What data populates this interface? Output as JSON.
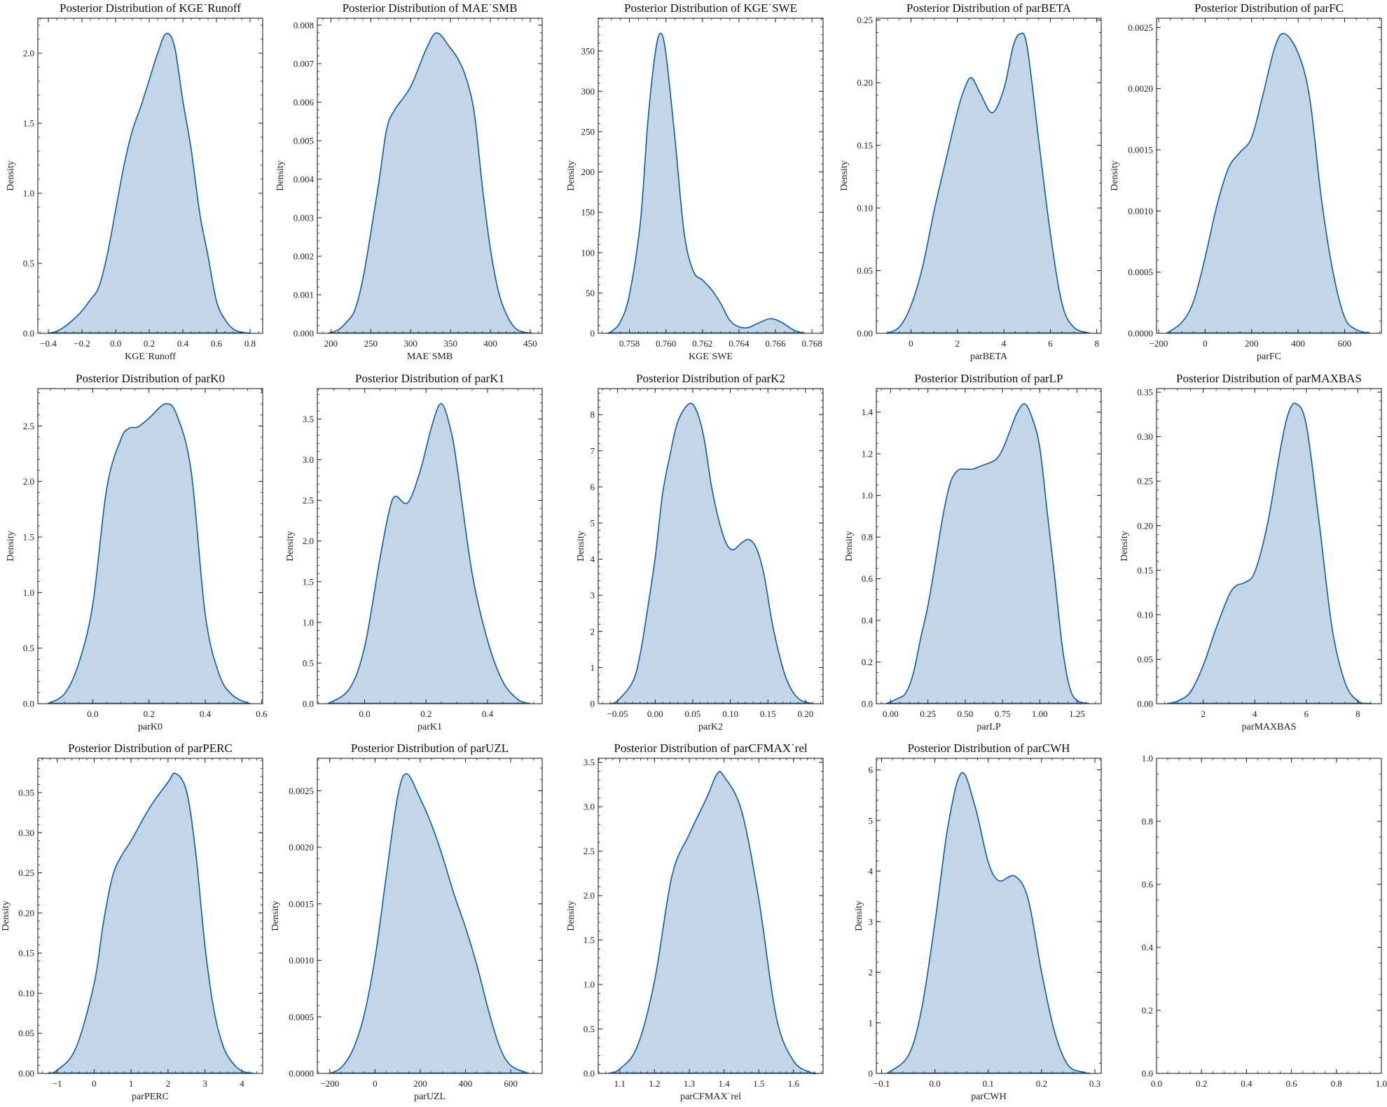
{
  "colors": {
    "line": "#0C5DA5",
    "fill": "#c3d6e7",
    "axes": "#222222"
  },
  "chart_data": [
    {
      "type": "area",
      "title": "Posterior Distribution of KGE˙Runoff",
      "xlabel": "KGE˙Runoff",
      "ylabel": "Density",
      "xlim": [
        -0.463,
        0.875
      ],
      "ylim": [
        0,
        2.25
      ],
      "xticks": [
        -0.4,
        -0.2,
        0,
        0.2,
        0.4,
        0.6,
        0.8
      ],
      "xtick_labels": [
        "−0.4",
        "−0.2",
        "0.0",
        "0.2",
        "0.4",
        "0.6",
        "0.8"
      ],
      "yticks": [
        0,
        0.5,
        1,
        1.5,
        2
      ],
      "ytick_labels": [
        "0.0",
        "0.5",
        "1.0",
        "1.5",
        "2.0"
      ],
      "x": [
        -0.4,
        -0.35,
        -0.3,
        -0.25,
        -0.2,
        -0.15,
        -0.1,
        -0.05,
        0,
        0.05,
        0.1,
        0.15,
        0.2,
        0.25,
        0.3,
        0.35,
        0.4,
        0.45,
        0.5,
        0.55,
        0.6,
        0.65,
        0.7,
        0.75,
        0.8
      ],
      "y": [
        0,
        0.015,
        0.05,
        0.1,
        0.16,
        0.24,
        0.33,
        0.56,
        0.88,
        1.2,
        1.45,
        1.62,
        1.81,
        2.0,
        2.14,
        2.05,
        1.66,
        1.31,
        0.86,
        0.55,
        0.23,
        0.1,
        0.03,
        0.008,
        0
      ]
    },
    {
      "type": "area",
      "title": "Posterior Distribution of MAE˙SMB",
      "xlabel": "MAE˙SMB",
      "ylabel": "Density",
      "xlim": [
        183,
        465
      ],
      "ylim": [
        0,
        0.00818
      ],
      "xticks": [
        200,
        250,
        300,
        350,
        400,
        450
      ],
      "xtick_labels": [
        "200",
        "250",
        "300",
        "350",
        "400",
        "450"
      ],
      "yticks": [
        0,
        0.001,
        0.002,
        0.003,
        0.004,
        0.005,
        0.006,
        0.007,
        0.008
      ],
      "ytick_labels": [
        "0.000",
        "0.001",
        "0.002",
        "0.003",
        "0.004",
        "0.005",
        "0.006",
        "0.007",
        "0.008"
      ],
      "x": [
        197,
        210,
        220,
        230,
        240,
        250,
        260,
        270,
        280,
        300,
        320,
        333,
        350,
        360,
        370,
        380,
        390,
        400,
        410,
        420,
        430,
        440,
        452
      ],
      "y": [
        0,
        0.0001,
        0.0003,
        0.0006,
        0.0014,
        0.0026,
        0.0039,
        0.0053,
        0.0058,
        0.0064,
        0.0074,
        0.0078,
        0.0074,
        0.0071,
        0.0066,
        0.0057,
        0.0038,
        0.0022,
        0.0011,
        0.0005,
        0.00016,
        4e-05,
        0
      ]
    },
    {
      "type": "area",
      "title": "Posterior Distribution of KGE˙SWE",
      "xlabel": "KGE˙SWE",
      "ylabel": "Density",
      "xlim": [
        0.75629,
        0.76861
      ],
      "ylim": [
        0,
        390.6
      ],
      "xticks": [
        0.758,
        0.76,
        0.762,
        0.764,
        0.766,
        0.768
      ],
      "xtick_labels": [
        "0.758",
        "0.760",
        "0.762",
        "0.764",
        "0.766",
        "0.768"
      ],
      "yticks": [
        0,
        50,
        100,
        150,
        200,
        250,
        300,
        350
      ],
      "ytick_labels": [
        "0",
        "50",
        "100",
        "150",
        "200",
        "250",
        "300",
        "350"
      ],
      "x": [
        0.7568,
        0.757,
        0.7575,
        0.758,
        0.7586,
        0.759,
        0.7594,
        0.7597,
        0.76,
        0.7605,
        0.761,
        0.7615,
        0.762,
        0.7625,
        0.763,
        0.7635,
        0.764,
        0.7645,
        0.765,
        0.7657,
        0.7663,
        0.767,
        0.7676
      ],
      "y": [
        0,
        2,
        14,
        48,
        138,
        260,
        345,
        372,
        346,
        240,
        124,
        77,
        66,
        54,
        37,
        16,
        8,
        7,
        12,
        18,
        14,
        4,
        0
      ]
    },
    {
      "type": "area",
      "title": "Posterior Distribution of parBETA",
      "xlabel": "parBETA",
      "ylabel": "Density",
      "xlim": [
        -1.49,
        8.19
      ],
      "ylim": [
        0,
        0.2515
      ],
      "xticks": [
        0,
        2,
        4,
        6,
        8
      ],
      "xtick_labels": [
        "0",
        "2",
        "4",
        "6",
        "8"
      ],
      "yticks": [
        0,
        0.05,
        0.1,
        0.15,
        0.2,
        0.25
      ],
      "ytick_labels": [
        "0.00",
        "0.05",
        "0.10",
        "0.15",
        "0.20",
        "0.25"
      ],
      "x": [
        -1.05,
        -0.5,
        0,
        0.5,
        1,
        1.5,
        2,
        2.3,
        2.6,
        3,
        3.5,
        4,
        4.4,
        4.7,
        5,
        5.5,
        6,
        6.5,
        7,
        7.7
      ],
      "y": [
        0,
        0.005,
        0.022,
        0.053,
        0.098,
        0.138,
        0.177,
        0.195,
        0.204,
        0.191,
        0.176,
        0.195,
        0.229,
        0.239,
        0.229,
        0.154,
        0.08,
        0.024,
        0.005,
        0
      ]
    },
    {
      "type": "area",
      "title": "Posterior Distribution of parFC",
      "xlabel": "parFC",
      "ylabel": "Density",
      "xlim": [
        -209,
        758
      ],
      "ylim": [
        0,
        0.002576
      ],
      "xticks": [
        -200,
        0,
        200,
        400,
        600
      ],
      "xtick_labels": [
        "−200",
        "0",
        "200",
        "400",
        "600"
      ],
      "yticks": [
        0,
        0.0005,
        0.001,
        0.0015,
        0.002,
        0.0025
      ],
      "ytick_labels": [
        "0.0000",
        "0.0005",
        "0.0010",
        "0.0015",
        "0.0020",
        "0.0025"
      ],
      "x": [
        -165,
        -100,
        -50,
        0,
        50,
        100,
        150,
        200,
        250,
        300,
        340,
        400,
        450,
        500,
        550,
        600,
        650,
        710
      ],
      "y": [
        0,
        9e-05,
        0.00026,
        0.00062,
        0.00104,
        0.00135,
        0.00148,
        0.0016,
        0.00196,
        0.00234,
        0.00245,
        0.00229,
        0.00192,
        0.0011,
        0.0005,
        0.00013,
        3e-05,
        0
      ]
    },
    {
      "type": "area",
      "title": "Posterior Distribution of parK0",
      "xlabel": "parK0",
      "ylabel": "Density",
      "xlim": [
        -0.195,
        0.604
      ],
      "ylim": [
        0,
        2.836
      ],
      "xticks": [
        0,
        0.2,
        0.4,
        0.6
      ],
      "xtick_labels": [
        "0.0",
        "0.2",
        "0.4",
        "0.6"
      ],
      "yticks": [
        0,
        0.5,
        1,
        1.5,
        2,
        2.5
      ],
      "ytick_labels": [
        "0.0",
        "0.5",
        "1.0",
        "1.5",
        "2.0",
        "2.5"
      ],
      "x": [
        -0.16,
        -0.1,
        -0.05,
        0,
        0.05,
        0.1,
        0.13,
        0.16,
        0.2,
        0.26,
        0.3,
        0.35,
        0.4,
        0.45,
        0.5,
        0.56
      ],
      "y": [
        0,
        0.09,
        0.36,
        0.89,
        1.94,
        2.38,
        2.48,
        2.49,
        2.57,
        2.7,
        2.59,
        2.09,
        0.8,
        0.26,
        0.07,
        0
      ]
    },
    {
      "type": "area",
      "title": "Posterior Distribution of parK1",
      "xlabel": "parK1",
      "ylabel": "Density",
      "xlim": [
        -0.154,
        0.578
      ],
      "ylim": [
        0,
        3.874
      ],
      "xticks": [
        0,
        0.2,
        0.4
      ],
      "xtick_labels": [
        "0.0",
        "0.2",
        "0.4"
      ],
      "yticks": [
        0,
        0.5,
        1,
        1.5,
        2,
        2.5,
        3,
        3.5
      ],
      "ytick_labels": [
        "0.0",
        "0.5",
        "1.0",
        "1.5",
        "2.0",
        "2.5",
        "3.0",
        "3.5"
      ],
      "x": [
        -0.12,
        -0.05,
        0,
        0.05,
        0.08,
        0.1,
        0.14,
        0.18,
        0.22,
        0.25,
        0.28,
        0.3,
        0.35,
        0.4,
        0.45,
        0.5,
        0.54
      ],
      "y": [
        0,
        0.18,
        0.7,
        1.79,
        2.37,
        2.55,
        2.47,
        2.85,
        3.43,
        3.69,
        3.37,
        2.94,
        1.6,
        0.78,
        0.27,
        0.05,
        0
      ]
    },
    {
      "type": "area",
      "title": "Posterior Distribution of parK2",
      "xlabel": "parK2",
      "ylabel": "Density",
      "xlim": [
        -0.0757,
        0.2234
      ],
      "ylim": [
        0,
        8.72
      ],
      "xticks": [
        -0.05,
        0,
        0.05,
        0.1,
        0.15,
        0.2
      ],
      "xtick_labels": [
        "−0.05",
        "0.00",
        "0.05",
        "0.10",
        "0.15",
        "0.20"
      ],
      "yticks": [
        0,
        1,
        2,
        3,
        4,
        5,
        6,
        7,
        8
      ],
      "ytick_labels": [
        "0",
        "1",
        "2",
        "3",
        "4",
        "5",
        "6",
        "7",
        "8"
      ],
      "x": [
        -0.06,
        -0.05,
        -0.03,
        -0.02,
        -0.01,
        0,
        0.01,
        0.02,
        0.03,
        0.045,
        0.055,
        0.065,
        0.075,
        0.085,
        0.095,
        0.104,
        0.115,
        0.125,
        0.135,
        0.145,
        0.155,
        0.165,
        0.175,
        0.185,
        0.195,
        0.21
      ],
      "y": [
        0,
        0.08,
        0.6,
        1.36,
        2.63,
        4.03,
        5.82,
        6.9,
        7.8,
        8.3,
        8.11,
        7.35,
        6.01,
        5.05,
        4.42,
        4.26,
        4.45,
        4.54,
        4.29,
        3.55,
        2.31,
        1.36,
        0.66,
        0.27,
        0.08,
        0
      ]
    },
    {
      "type": "area",
      "title": "Posterior Distribution of parLP",
      "xlabel": "parLP",
      "ylabel": "Density",
      "xlim": [
        -0.096,
        1.412
      ],
      "ylim": [
        0,
        1.513
      ],
      "xticks": [
        0,
        0.25,
        0.5,
        0.75,
        1,
        1.25
      ],
      "xtick_labels": [
        "0.00",
        "0.25",
        "0.50",
        "0.75",
        "1.00",
        "1.25"
      ],
      "yticks": [
        0,
        0.2,
        0.4,
        0.6,
        0.8,
        1,
        1.2,
        1.4
      ],
      "ytick_labels": [
        "0.0",
        "0.2",
        "0.4",
        "0.6",
        "0.8",
        "1.0",
        "1.2",
        "1.4"
      ],
      "x": [
        -0.03,
        0.05,
        0.1,
        0.15,
        0.2,
        0.25,
        0.3,
        0.35,
        0.4,
        0.45,
        0.5,
        0.55,
        0.6,
        0.7,
        0.75,
        0.8,
        0.85,
        0.9,
        0.95,
        1.0,
        1.05,
        1.1,
        1.15,
        1.2,
        1.25,
        1.33
      ],
      "y": [
        0,
        0.026,
        0.05,
        0.14,
        0.31,
        0.47,
        0.68,
        0.9,
        1.06,
        1.12,
        1.126,
        1.126,
        1.14,
        1.17,
        1.22,
        1.31,
        1.4,
        1.44,
        1.37,
        1.23,
        0.92,
        0.61,
        0.28,
        0.08,
        0.015,
        0
      ]
    },
    {
      "type": "area",
      "title": "Posterior Distribution of parMAXBAS",
      "xlabel": "parMAXBAS",
      "ylabel": "Density",
      "xlim": [
        0.186,
        8.914
      ],
      "ylim": [
        0,
        0.354
      ],
      "xticks": [
        2,
        4,
        6,
        8
      ],
      "xtick_labels": [
        "2",
        "4",
        "6",
        "8"
      ],
      "yticks": [
        0,
        0.05,
        0.1,
        0.15,
        0.2,
        0.25,
        0.3,
        0.35
      ],
      "ytick_labels": [
        "0.00",
        "0.05",
        "0.10",
        "0.15",
        "0.20",
        "0.25",
        "0.30",
        "0.35"
      ],
      "x": [
        0.6,
        1,
        1.5,
        2,
        2.5,
        3,
        3.3,
        3.6,
        4,
        4.5,
        5,
        5.3,
        5.6,
        6,
        6.5,
        7,
        7.5,
        8,
        8.5
      ],
      "y": [
        0,
        0.003,
        0.013,
        0.043,
        0.085,
        0.122,
        0.133,
        0.136,
        0.148,
        0.203,
        0.287,
        0.326,
        0.337,
        0.313,
        0.203,
        0.085,
        0.024,
        0.003,
        0
      ]
    },
    {
      "type": "area",
      "title": "Posterior Distribution of parPERC",
      "xlabel": "parPERC",
      "ylabel": "Density",
      "xlim": [
        -1.525,
        4.563
      ],
      "ylim": [
        0,
        0.3928
      ],
      "xticks": [
        -1,
        0,
        1,
        2,
        3,
        4
      ],
      "xtick_labels": [
        "−1",
        "0",
        "1",
        "2",
        "3",
        "4"
      ],
      "yticks": [
        0,
        0.05,
        0.1,
        0.15,
        0.2,
        0.25,
        0.3,
        0.35
      ],
      "ytick_labels": [
        "0.00",
        "0.05",
        "0.10",
        "0.15",
        "0.20",
        "0.25",
        "0.30",
        "0.35"
      ],
      "x": [
        -1.25,
        -1,
        -0.5,
        0,
        0.25,
        0.5,
        0.75,
        1,
        1.5,
        2,
        2.2,
        2.5,
        2.75,
        3,
        3.25,
        3.5,
        3.75,
        4,
        4.3
      ],
      "y": [
        0,
        0.004,
        0.031,
        0.112,
        0.188,
        0.246,
        0.272,
        0.29,
        0.331,
        0.363,
        0.374,
        0.352,
        0.275,
        0.159,
        0.077,
        0.033,
        0.013,
        0.003,
        0
      ]
    },
    {
      "type": "area",
      "title": "Posterior Distribution of parUZL",
      "xlabel": "parUZL",
      "ylabel": "Density",
      "xlim": [
        -255,
        739
      ],
      "ylim": [
        0,
        0.002787
      ],
      "xticks": [
        -200,
        0,
        200,
        400,
        600
      ],
      "xtick_labels": [
        "−200",
        "0",
        "200",
        "400",
        "600"
      ],
      "yticks": [
        0,
        0.0005,
        0.001,
        0.0015,
        0.002,
        0.0025
      ],
      "ytick_labels": [
        "0.0000",
        "0.0005",
        "0.0010",
        "0.0015",
        "0.0020",
        "0.0025"
      ],
      "x": [
        -200,
        -150,
        -100,
        -50,
        0,
        50,
        100,
        140,
        200,
        250,
        300,
        350,
        400,
        450,
        500,
        550,
        600,
        680
      ],
      "y": [
        0,
        5e-05,
        0.0002,
        0.0005,
        0.00102,
        0.00175,
        0.00245,
        0.00265,
        0.00243,
        0.0022,
        0.00191,
        0.00158,
        0.00129,
        0.00096,
        0.00057,
        0.00024,
        7e-05,
        0
      ]
    },
    {
      "type": "area",
      "title": "Posterior Distribution of parCFMAX˙rel",
      "xlabel": "parCFMAX˙rel",
      "ylabel": "Density",
      "xlim": [
        1.038,
        1.685
      ],
      "ylim": [
        0,
        3.545
      ],
      "xticks": [
        1.1,
        1.2,
        1.3,
        1.4,
        1.5,
        1.6
      ],
      "xtick_labels": [
        "1.1",
        "1.2",
        "1.3",
        "1.4",
        "1.5",
        "1.6"
      ],
      "yticks": [
        0,
        0.5,
        1,
        1.5,
        2,
        2.5,
        3,
        3.5
      ],
      "ytick_labels": [
        "0.0",
        "0.5",
        "1.0",
        "1.5",
        "2.0",
        "2.5",
        "3.0",
        "3.5"
      ],
      "x": [
        1.068,
        1.1,
        1.15,
        1.2,
        1.25,
        1.3,
        1.35,
        1.38,
        1.4,
        1.45,
        1.5,
        1.55,
        1.6,
        1.65,
        1.665
      ],
      "y": [
        0,
        0.05,
        0.3,
        1.04,
        2.22,
        2.69,
        3.1,
        3.37,
        3.34,
        2.96,
        1.96,
        0.64,
        0.14,
        0.01,
        0
      ]
    },
    {
      "type": "area",
      "title": "Posterior Distribution of parCWH",
      "xlabel": "parCWH",
      "ylabel": "Density",
      "xlim": [
        -0.1099,
        0.3119
      ],
      "ylim": [
        0,
        6.23
      ],
      "xticks": [
        -0.1,
        0,
        0.1,
        0.2,
        0.3
      ],
      "xtick_labels": [
        "−0.1",
        "0.0",
        "0.1",
        "0.2",
        "0.3"
      ],
      "yticks": [
        0,
        1,
        2,
        3,
        4,
        5,
        6
      ],
      "ytick_labels": [
        "0",
        "1",
        "2",
        "3",
        "4",
        "5",
        "6"
      ],
      "x": [
        -0.09,
        -0.05,
        -0.025,
        0,
        0.025,
        0.05,
        0.075,
        0.1,
        0.12,
        0.15,
        0.175,
        0.2,
        0.225,
        0.25,
        0.28,
        0.29
      ],
      "y": [
        0,
        0.35,
        1.27,
        2.98,
        4.92,
        5.94,
        5.29,
        4.18,
        3.81,
        3.9,
        3.44,
        2.0,
        0.8,
        0.16,
        0.02,
        0
      ]
    },
    {
      "type": "empty",
      "title": "",
      "xlabel": "",
      "ylabel": "",
      "xlim": [
        0,
        1
      ],
      "ylim": [
        0,
        1
      ],
      "xticks": [
        0,
        0.2,
        0.4,
        0.6,
        0.8,
        1
      ],
      "xtick_labels": [
        "0.0",
        "0.2",
        "0.4",
        "0.6",
        "0.8",
        "1.0"
      ],
      "yticks": [
        0,
        0.2,
        0.4,
        0.6,
        0.8,
        1
      ],
      "ytick_labels": [
        "0.0",
        "0.2",
        "0.4",
        "0.6",
        "0.8",
        "1.0"
      ]
    }
  ]
}
